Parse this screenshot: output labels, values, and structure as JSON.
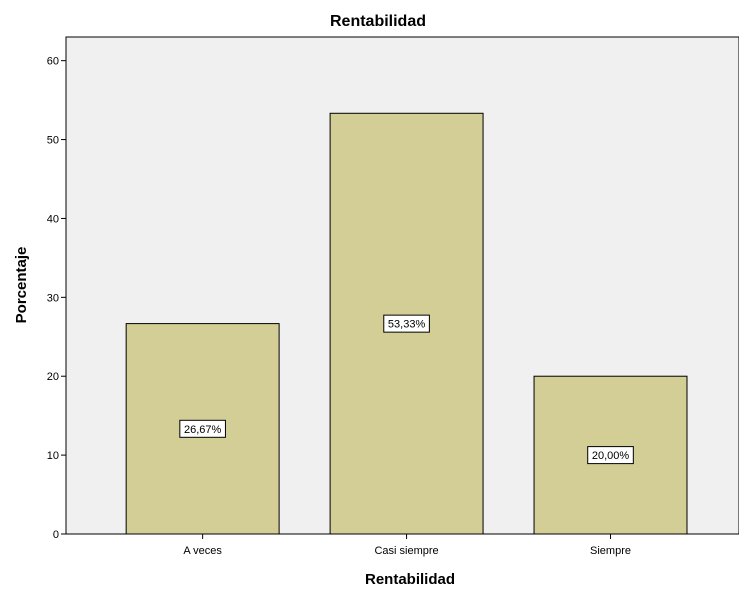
{
  "chart_data": {
    "type": "bar",
    "title": "Rentabilidad",
    "xlabel": "Rentabilidad",
    "ylabel": "Porcentaje",
    "categories": [
      "A veces",
      "Casi siempre",
      "Siempre"
    ],
    "values": [
      26.67,
      53.33,
      20.0
    ],
    "data_labels": [
      "26,67%",
      "53,33%",
      "20,00%"
    ],
    "ylim": [
      0,
      63
    ],
    "yticks": [
      "0",
      "10",
      "20",
      "30",
      "40",
      "50",
      "60"
    ],
    "grid": false,
    "legend": "none",
    "bar_color": "#d3ce96",
    "plot_background": "#f0f0f0"
  }
}
